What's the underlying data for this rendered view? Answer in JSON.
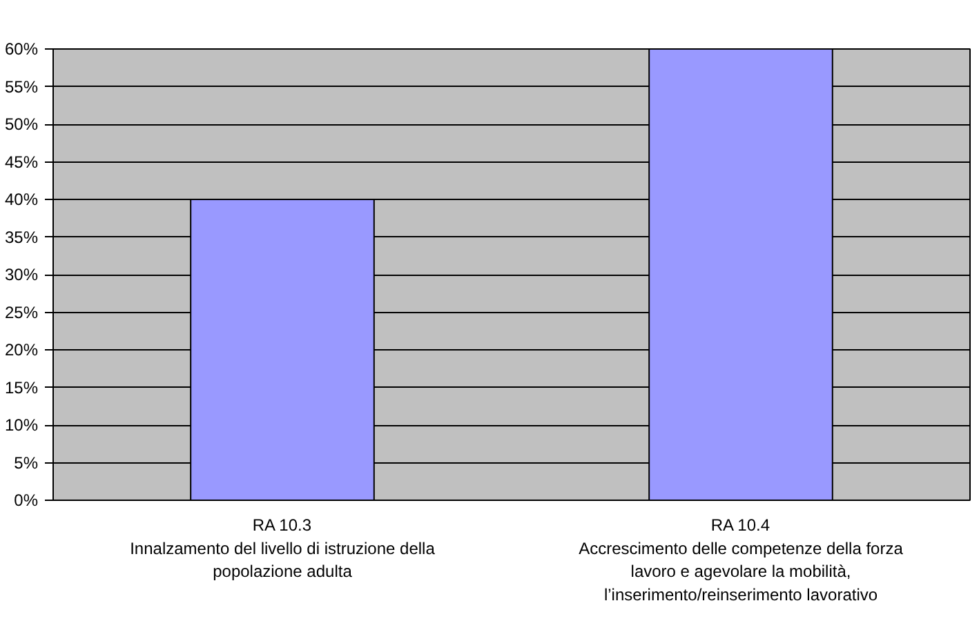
{
  "chart_data": {
    "type": "bar",
    "categories": [
      "RA 10.3\nInnalzamento del livello di istruzione della\npopolazione adulta",
      "RA 10.4\nAccrescimento delle competenze della forza\nlavoro e agevolare la mobilità,\nl’inserimento/reinserimento lavorativo"
    ],
    "values": [
      40,
      60
    ],
    "color": "#9999ff",
    "ylim": [
      0,
      60
    ],
    "yticks": [
      {
        "value": 0,
        "label": "0%"
      },
      {
        "value": 5,
        "label": "5%"
      },
      {
        "value": 10,
        "label": "10%"
      },
      {
        "value": 15,
        "label": "15%"
      },
      {
        "value": 20,
        "label": "20%"
      },
      {
        "value": 25,
        "label": "25%"
      },
      {
        "value": 30,
        "label": "30%"
      },
      {
        "value": 35,
        "label": "35%"
      },
      {
        "value": 40,
        "label": "40%"
      },
      {
        "value": 45,
        "label": "45%"
      },
      {
        "value": 50,
        "label": "50%"
      },
      {
        "value": 55,
        "label": "55%"
      },
      {
        "value": 60,
        "label": "60%"
      }
    ],
    "grid": "y"
  }
}
